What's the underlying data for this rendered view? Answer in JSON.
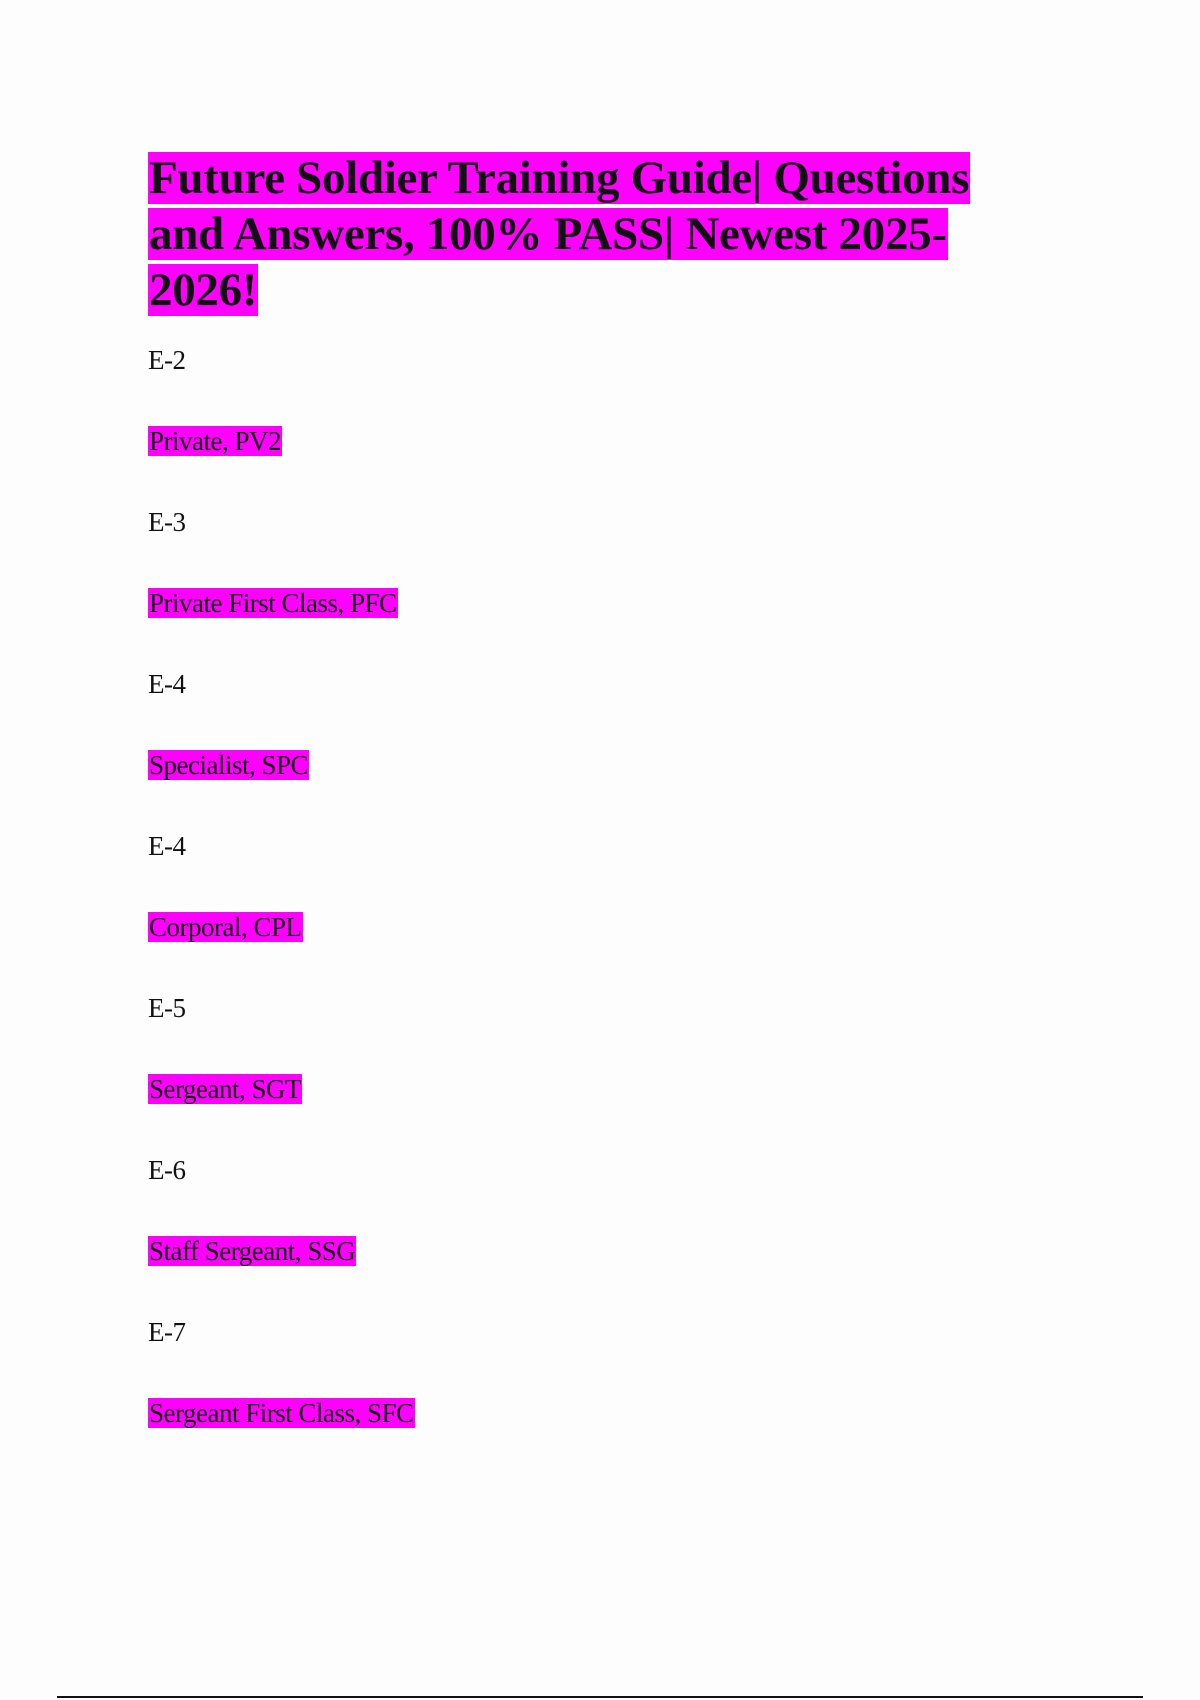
{
  "document": {
    "title": "Future Soldier Training Guide| Questions and Answers, 100% PASS| Newest 2025-2026!",
    "highlight_color": "#ff00ff",
    "items": [
      {
        "question": "E-2",
        "answer": "Private, PV2"
      },
      {
        "question": "E-3",
        "answer": "Private First Class, PFC"
      },
      {
        "question": "E-4",
        "answer": "Specialist, SPC"
      },
      {
        "question": "E-4",
        "answer": "Corporal, CPL"
      },
      {
        "question": "E-5",
        "answer": "Sergeant, SGT"
      },
      {
        "question": "E-6",
        "answer": "Staff Sergeant, SSG"
      },
      {
        "question": "E-7",
        "answer": "Sergeant First Class, SFC"
      }
    ]
  }
}
